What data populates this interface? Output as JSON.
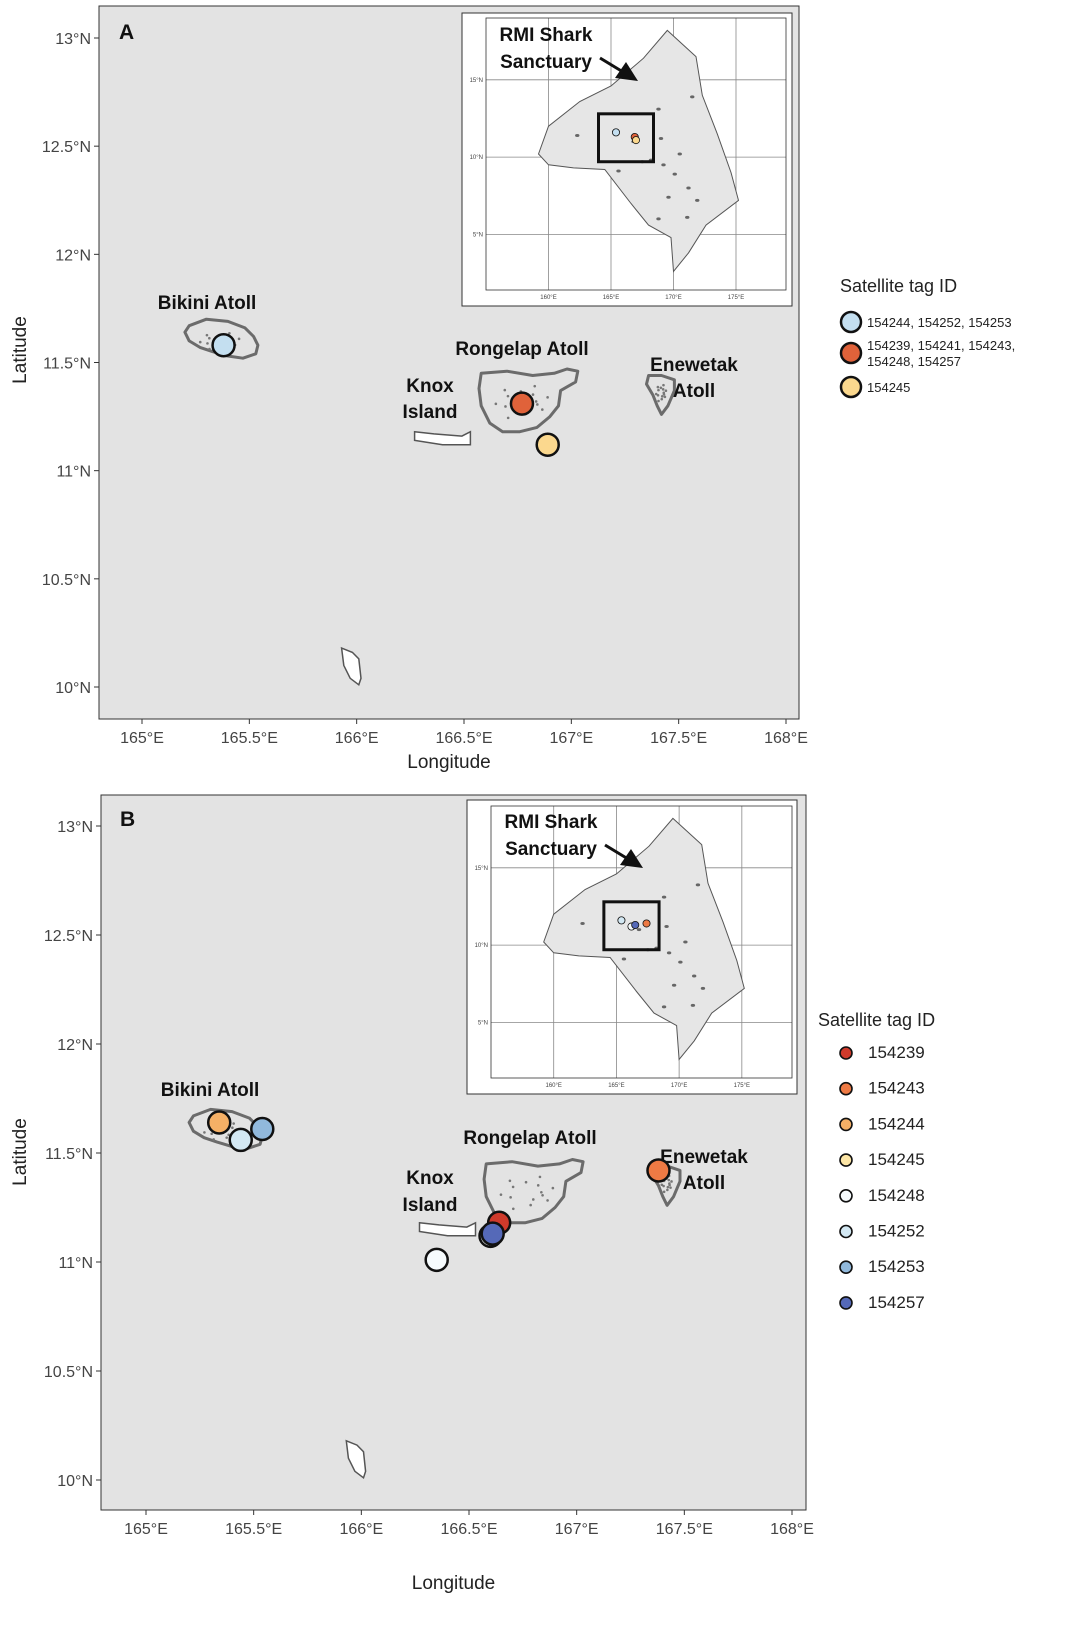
{
  "axis": {
    "xlabel": "Longitude",
    "ylabel": "Latitude",
    "x_ticks": [
      "165°E",
      "165.5°E",
      "166°E",
      "166.5°E",
      "167°E",
      "167.5°E",
      "168°E"
    ],
    "y_ticks": [
      "13°N",
      "12.5°N",
      "12°N",
      "11.5°N",
      "11°N",
      "10.5°N",
      "10°N"
    ]
  },
  "colors": {
    "panel_bg": "#e3e3e3",
    "land_outline": "#6b6b6b",
    "light_blue": "#c4dff0",
    "orange_red": "#e0623a",
    "yellow": "#fbd88e",
    "red": "#cf3a2b",
    "orange": "#ee7a44",
    "light_orange": "#f5b066",
    "pale_yellow": "#fde6a6",
    "white_fill": "#f6fbfd",
    "pale_blue": "#d3e8f3",
    "mid_blue": "#91b9dc",
    "dark_blue": "#5569b8"
  },
  "panels": [
    {
      "letter": "A",
      "labels": {
        "bikini": "Bikini Atoll",
        "rongelap": "Rongelap Atoll",
        "knox1": "Knox",
        "knox2": "Island",
        "enewetak1": "Enewetak",
        "enewetak2": "Atoll"
      },
      "inset": {
        "title1": "RMI Shark",
        "title2": "Sanctuary",
        "x_ticks": [
          "160°E",
          "165°E",
          "170°E",
          "175°E"
        ],
        "y_ticks": [
          "15°N",
          "10°N",
          "5°N"
        ]
      },
      "points": [
        {
          "lon": 165.38,
          "lat": 11.58,
          "color_key": "light_blue"
        },
        {
          "lon": 166.77,
          "lat": 11.31,
          "color_key": "orange_red"
        },
        {
          "lon": 166.89,
          "lat": 11.12,
          "color_key": "yellow"
        }
      ],
      "legend": {
        "title": "Satellite tag ID",
        "items": [
          {
            "line1": "154244, 154252, 154253",
            "line2": "",
            "color_key": "light_blue"
          },
          {
            "line1": "154239, 154241, 154243,",
            "line2": "154248, 154257",
            "color_key": "orange_red"
          },
          {
            "line1": "154245",
            "line2": "",
            "color_key": "yellow"
          }
        ]
      }
    },
    {
      "letter": "B",
      "labels": {
        "bikini": "Bikini Atoll",
        "rongelap": "Rongelap Atoll",
        "knox1": "Knox",
        "knox2": "Island",
        "enewetak1": "Enewetak",
        "enewetak2": "Atoll"
      },
      "inset": {
        "title1": "RMI Shark",
        "title2": "Sanctuary",
        "x_ticks": [
          "160°E",
          "165°E",
          "170°E",
          "175°E"
        ],
        "y_ticks": [
          "15°N",
          "10°N",
          "5°N"
        ]
      },
      "points": [
        {
          "lon": 165.34,
          "lat": 11.64,
          "color_key": "light_orange"
        },
        {
          "lon": 165.44,
          "lat": 11.56,
          "color_key": "pale_blue"
        },
        {
          "lon": 165.54,
          "lat": 11.61,
          "color_key": "mid_blue"
        },
        {
          "lon": 166.64,
          "lat": 11.18,
          "color_key": "red"
        },
        {
          "lon": 166.6,
          "lat": 11.12,
          "color_key": "white_fill"
        },
        {
          "lon": 166.61,
          "lat": 11.13,
          "color_key": "dark_blue"
        },
        {
          "lon": 166.35,
          "lat": 11.01,
          "color_key": "white_fill"
        },
        {
          "lon": 167.38,
          "lat": 11.42,
          "color_key": "orange"
        }
      ],
      "legend": {
        "title": "Satellite tag ID",
        "items": [
          {
            "line1": "154239",
            "line2": "",
            "color_key": "red"
          },
          {
            "line1": "154243",
            "line2": "",
            "color_key": "orange"
          },
          {
            "line1": "154244",
            "line2": "",
            "color_key": "light_orange"
          },
          {
            "line1": "154245",
            "line2": "",
            "color_key": "pale_yellow"
          },
          {
            "line1": "154248",
            "line2": "",
            "color_key": "white_fill"
          },
          {
            "line1": "154252",
            "line2": "",
            "color_key": "pale_blue"
          },
          {
            "line1": "154253",
            "line2": "",
            "color_key": "mid_blue"
          },
          {
            "line1": "154257",
            "line2": "",
            "color_key": "dark_blue"
          }
        ]
      }
    }
  ]
}
